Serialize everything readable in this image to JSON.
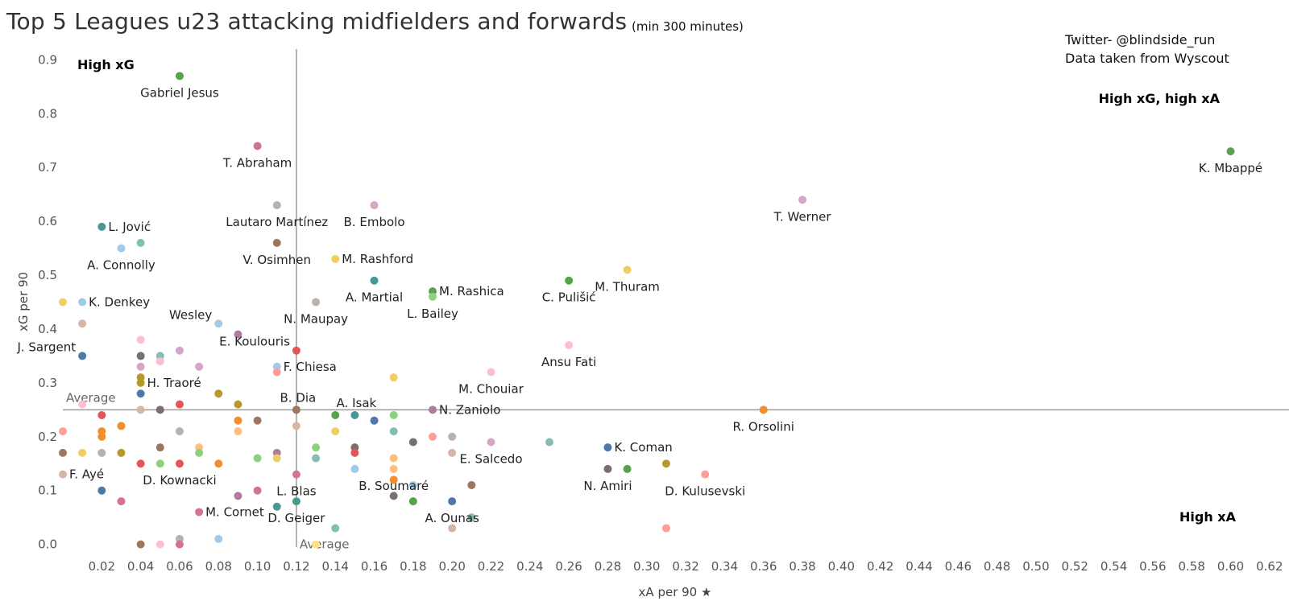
{
  "header": {
    "title": "Top 5 Leagues u23 attacking midfielders and forwards",
    "subtitle": "(min 300 minutes)",
    "credit_twitter": "Twitter- @blindside_run",
    "credit_source": "Data taken from Wyscout"
  },
  "chart_data": {
    "type": "scatter",
    "title": "Top 5 Leagues u23 attacking midfielders and forwards",
    "subtitle": "(min 300 minutes)",
    "xlabel": "xA per 90 ★",
    "ylabel": "xG per 90",
    "xlim": [
      0.0,
      0.63
    ],
    "ylim": [
      -0.02,
      0.92
    ],
    "x_ticks": [
      "0.02",
      "0.04",
      "0.06",
      "0.08",
      "0.10",
      "0.12",
      "0.14",
      "0.16",
      "0.18",
      "0.20",
      "0.22",
      "0.24",
      "0.26",
      "0.28",
      "0.30",
      "0.32",
      "0.34",
      "0.36",
      "0.38",
      "0.40",
      "0.42",
      "0.44",
      "0.46",
      "0.48",
      "0.50",
      "0.52",
      "0.54",
      "0.56",
      "0.58",
      "0.60",
      "0.62"
    ],
    "y_ticks": [
      "0.0",
      "0.1",
      "0.2",
      "0.3",
      "0.4",
      "0.5",
      "0.6",
      "0.7",
      "0.8",
      "0.9"
    ],
    "grid": false,
    "reference_lines": {
      "average_x": 0.12,
      "average_y": 0.25,
      "x_average_label": "Average",
      "y_average_label": "Average"
    },
    "quadrant_labels": {
      "top_left": "High xG",
      "top_right": "High xG, high xA",
      "bottom_right": "High xA"
    },
    "points": [
      {
        "x": 0.06,
        "y": 0.87,
        "color": "#59a14f",
        "label": "Gabriel Jesus"
      },
      {
        "x": 0.1,
        "y": 0.74,
        "color": "#d37295",
        "label": "T. Abraham"
      },
      {
        "x": 0.11,
        "y": 0.63,
        "color": "#bab0ac",
        "label": "Lautaro Martínez"
      },
      {
        "x": 0.16,
        "y": 0.63,
        "color": "#d4a6c8",
        "label": "B. Embolo"
      },
      {
        "x": 0.02,
        "y": 0.59,
        "color": "#499894",
        "label": "L. Jović"
      },
      {
        "x": 0.03,
        "y": 0.55,
        "color": "#a0cbe8",
        "label": "A. Connolly"
      },
      {
        "x": 0.04,
        "y": 0.56,
        "color": "#86bcb6",
        "label": ""
      },
      {
        "x": 0.11,
        "y": 0.56,
        "color": "#9d7660",
        "label": "V. Osimhen"
      },
      {
        "x": 0.14,
        "y": 0.53,
        "color": "#f1ce63",
        "label": "M. Rashford"
      },
      {
        "x": 0.16,
        "y": 0.49,
        "color": "#499894",
        "label": "A. Martial"
      },
      {
        "x": 0.19,
        "y": 0.47,
        "color": "#59a14f",
        "label": "M. Rashica"
      },
      {
        "x": 0.19,
        "y": 0.46,
        "color": "#8cd17d",
        "label": "L. Bailey"
      },
      {
        "x": 0.26,
        "y": 0.49,
        "color": "#59a14f",
        "label": "C. Pulišić"
      },
      {
        "x": 0.29,
        "y": 0.51,
        "color": "#f1ce63",
        "label": "M. Thuram"
      },
      {
        "x": 0.38,
        "y": 0.64,
        "color": "#d4a6c8",
        "label": "T. Werner"
      },
      {
        "x": 0.6,
        "y": 0.73,
        "color": "#59a14f",
        "label": "K. Mbappé"
      },
      {
        "x": 0.0,
        "y": 0.45,
        "color": "#f1ce63",
        "label": ""
      },
      {
        "x": 0.01,
        "y": 0.45,
        "color": "#a0cbe8",
        "label": "K. Denkey"
      },
      {
        "x": 0.13,
        "y": 0.45,
        "color": "#bab0ac",
        "label": "N. Maupay"
      },
      {
        "x": 0.08,
        "y": 0.41,
        "color": "#a0cbe8",
        "label": "Wesley"
      },
      {
        "x": 0.09,
        "y": 0.39,
        "color": "#b07aa1",
        "label": ""
      },
      {
        "x": 0.01,
        "y": 0.41,
        "color": "#d7b5a6",
        "label": ""
      },
      {
        "x": 0.04,
        "y": 0.38,
        "color": "#fabfd2",
        "label": ""
      },
      {
        "x": 0.01,
        "y": 0.35,
        "color": "#4e79a7",
        "label": "J. Sargent"
      },
      {
        "x": 0.04,
        "y": 0.35,
        "color": "#79706e",
        "label": ""
      },
      {
        "x": 0.05,
        "y": 0.35,
        "color": "#86bcb6",
        "label": ""
      },
      {
        "x": 0.06,
        "y": 0.36,
        "color": "#d4a6c8",
        "label": ""
      },
      {
        "x": 0.05,
        "y": 0.34,
        "color": "#fabfd2",
        "label": ""
      },
      {
        "x": 0.04,
        "y": 0.33,
        "color": "#d4a6c8",
        "label": ""
      },
      {
        "x": 0.07,
        "y": 0.33,
        "color": "#d4a6c8",
        "label": ""
      },
      {
        "x": 0.12,
        "y": 0.36,
        "color": "#e15759",
        "label": "E. Koulouris"
      },
      {
        "x": 0.11,
        "y": 0.33,
        "color": "#a0cbe8",
        "label": "F. Chiesa"
      },
      {
        "x": 0.11,
        "y": 0.32,
        "color": "#ff9d9a",
        "label": ""
      },
      {
        "x": 0.04,
        "y": 0.31,
        "color": "#b6992d",
        "label": ""
      },
      {
        "x": 0.04,
        "y": 0.3,
        "color": "#b6992d",
        "label": "H. Traoré"
      },
      {
        "x": 0.26,
        "y": 0.37,
        "color": "#fabfd2",
        "label": "Ansu Fati"
      },
      {
        "x": 0.22,
        "y": 0.32,
        "color": "#fabfd2",
        "label": "M. Chouiar"
      },
      {
        "x": 0.17,
        "y": 0.31,
        "color": "#f1ce63",
        "label": ""
      },
      {
        "x": 0.04,
        "y": 0.28,
        "color": "#4e79a7",
        "label": ""
      },
      {
        "x": 0.08,
        "y": 0.28,
        "color": "#b6992d",
        "label": ""
      },
      {
        "x": 0.09,
        "y": 0.26,
        "color": "#b6992d",
        "label": ""
      },
      {
        "x": 0.04,
        "y": 0.25,
        "color": "#d7b5a6",
        "label": ""
      },
      {
        "x": 0.05,
        "y": 0.25,
        "color": "#79706e",
        "label": ""
      },
      {
        "x": 0.06,
        "y": 0.26,
        "color": "#e15759",
        "label": ""
      },
      {
        "x": 0.01,
        "y": 0.26,
        "color": "#fabfd2",
        "label": ""
      },
      {
        "x": 0.12,
        "y": 0.25,
        "color": "#9d7660",
        "label": "B. Dia"
      },
      {
        "x": 0.14,
        "y": 0.24,
        "color": "#59a14f",
        "label": ""
      },
      {
        "x": 0.15,
        "y": 0.24,
        "color": "#499894",
        "label": "A. Isak"
      },
      {
        "x": 0.16,
        "y": 0.23,
        "color": "#4e79a7",
        "label": ""
      },
      {
        "x": 0.17,
        "y": 0.24,
        "color": "#8cd17d",
        "label": ""
      },
      {
        "x": 0.19,
        "y": 0.25,
        "color": "#b07aa1",
        "label": "N. Zaniolo"
      },
      {
        "x": 0.36,
        "y": 0.25,
        "color": "#f28e2b",
        "label": "R. Orsolini"
      },
      {
        "x": 0.02,
        "y": 0.24,
        "color": "#e15759",
        "label": ""
      },
      {
        "x": 0.09,
        "y": 0.23,
        "color": "#f28e2b",
        "label": ""
      },
      {
        "x": 0.1,
        "y": 0.23,
        "color": "#9d7660",
        "label": ""
      },
      {
        "x": 0.12,
        "y": 0.22,
        "color": "#d7b5a6",
        "label": ""
      },
      {
        "x": 0.0,
        "y": 0.21,
        "color": "#ff9d9a",
        "label": ""
      },
      {
        "x": 0.02,
        "y": 0.21,
        "color": "#f28e2b",
        "label": ""
      },
      {
        "x": 0.02,
        "y": 0.2,
        "color": "#f28e2b",
        "label": ""
      },
      {
        "x": 0.03,
        "y": 0.22,
        "color": "#f28e2b",
        "label": ""
      },
      {
        "x": 0.06,
        "y": 0.21,
        "color": "#bab0ac",
        "label": ""
      },
      {
        "x": 0.09,
        "y": 0.21,
        "color": "#ffbe7d",
        "label": ""
      },
      {
        "x": 0.14,
        "y": 0.21,
        "color": "#f1ce63",
        "label": ""
      },
      {
        "x": 0.17,
        "y": 0.21,
        "color": "#86bcb6",
        "label": ""
      },
      {
        "x": 0.19,
        "y": 0.2,
        "color": "#ff9d9a",
        "label": ""
      },
      {
        "x": 0.2,
        "y": 0.2,
        "color": "#bab0ac",
        "label": ""
      },
      {
        "x": 0.18,
        "y": 0.19,
        "color": "#79706e",
        "label": ""
      },
      {
        "x": 0.22,
        "y": 0.19,
        "color": "#d4a6c8",
        "label": "E. Salcedo"
      },
      {
        "x": 0.25,
        "y": 0.19,
        "color": "#86bcb6",
        "label": ""
      },
      {
        "x": 0.28,
        "y": 0.18,
        "color": "#4e79a7",
        "label": "K. Coman"
      },
      {
        "x": 0.0,
        "y": 0.17,
        "color": "#9d7660",
        "label": ""
      },
      {
        "x": 0.01,
        "y": 0.17,
        "color": "#f1ce63",
        "label": ""
      },
      {
        "x": 0.02,
        "y": 0.17,
        "color": "#bab0ac",
        "label": ""
      },
      {
        "x": 0.03,
        "y": 0.17,
        "color": "#b6992d",
        "label": ""
      },
      {
        "x": 0.05,
        "y": 0.18,
        "color": "#9d7660",
        "label": ""
      },
      {
        "x": 0.07,
        "y": 0.18,
        "color": "#ffbe7d",
        "label": ""
      },
      {
        "x": 0.07,
        "y": 0.17,
        "color": "#8cd17d",
        "label": ""
      },
      {
        "x": 0.1,
        "y": 0.16,
        "color": "#8cd17d",
        "label": ""
      },
      {
        "x": 0.11,
        "y": 0.17,
        "color": "#b07aa1",
        "label": ""
      },
      {
        "x": 0.11,
        "y": 0.16,
        "color": "#f1ce63",
        "label": ""
      },
      {
        "x": 0.13,
        "y": 0.18,
        "color": "#8cd17d",
        "label": ""
      },
      {
        "x": 0.13,
        "y": 0.16,
        "color": "#86bcb6",
        "label": ""
      },
      {
        "x": 0.15,
        "y": 0.18,
        "color": "#79706e",
        "label": ""
      },
      {
        "x": 0.15,
        "y": 0.17,
        "color": "#e15759",
        "label": ""
      },
      {
        "x": 0.17,
        "y": 0.16,
        "color": "#ffbe7d",
        "label": ""
      },
      {
        "x": 0.2,
        "y": 0.17,
        "color": "#d7b5a6",
        "label": ""
      },
      {
        "x": 0.31,
        "y": 0.15,
        "color": "#b6992d",
        "label": ""
      },
      {
        "x": 0.04,
        "y": 0.15,
        "color": "#e15759",
        "label": ""
      },
      {
        "x": 0.05,
        "y": 0.15,
        "color": "#8cd17d",
        "label": ""
      },
      {
        "x": 0.06,
        "y": 0.15,
        "color": "#e15759",
        "label": "D. Kownacki"
      },
      {
        "x": 0.08,
        "y": 0.15,
        "color": "#f28e2b",
        "label": ""
      },
      {
        "x": 0.15,
        "y": 0.14,
        "color": "#a0cbe8",
        "label": ""
      },
      {
        "x": 0.17,
        "y": 0.14,
        "color": "#ffbe7d",
        "label": "B. Soumaré"
      },
      {
        "x": 0.28,
        "y": 0.14,
        "color": "#79706e",
        "label": "N. Amiri"
      },
      {
        "x": 0.29,
        "y": 0.14,
        "color": "#59a14f",
        "label": ""
      },
      {
        "x": 0.0,
        "y": 0.13,
        "color": "#d7b5a6",
        "label": "F. Ayé"
      },
      {
        "x": 0.12,
        "y": 0.13,
        "color": "#d37295",
        "label": "L. Blas"
      },
      {
        "x": 0.17,
        "y": 0.12,
        "color": "#f28e2b",
        "label": ""
      },
      {
        "x": 0.18,
        "y": 0.11,
        "color": "#a0cbe8",
        "label": ""
      },
      {
        "x": 0.21,
        "y": 0.11,
        "color": "#9d7660",
        "label": ""
      },
      {
        "x": 0.33,
        "y": 0.13,
        "color": "#ff9d9a",
        "label": "D. Kulusevski"
      },
      {
        "x": 0.02,
        "y": 0.1,
        "color": "#4e79a7",
        "label": ""
      },
      {
        "x": 0.1,
        "y": 0.1,
        "color": "#d37295",
        "label": ""
      },
      {
        "x": 0.09,
        "y": 0.09,
        "color": "#b07aa1",
        "label": ""
      },
      {
        "x": 0.03,
        "y": 0.08,
        "color": "#d37295",
        "label": ""
      },
      {
        "x": 0.17,
        "y": 0.09,
        "color": "#79706e",
        "label": ""
      },
      {
        "x": 0.18,
        "y": 0.08,
        "color": "#59a14f",
        "label": ""
      },
      {
        "x": 0.2,
        "y": 0.08,
        "color": "#4e79a7",
        "label": "A. Ounas"
      },
      {
        "x": 0.12,
        "y": 0.08,
        "color": "#499894",
        "label": "D. Geiger"
      },
      {
        "x": 0.11,
        "y": 0.07,
        "color": "#499894",
        "label": ""
      },
      {
        "x": 0.07,
        "y": 0.06,
        "color": "#d37295",
        "label": "M. Cornet"
      },
      {
        "x": 0.21,
        "y": 0.05,
        "color": "#86bcb6",
        "label": ""
      },
      {
        "x": 0.14,
        "y": 0.03,
        "color": "#86bcb6",
        "label": ""
      },
      {
        "x": 0.2,
        "y": 0.03,
        "color": "#d7b5a6",
        "label": ""
      },
      {
        "x": 0.31,
        "y": 0.03,
        "color": "#ff9d9a",
        "label": ""
      },
      {
        "x": 0.06,
        "y": 0.01,
        "color": "#bab0ac",
        "label": ""
      },
      {
        "x": 0.08,
        "y": 0.01,
        "color": "#a0cbe8",
        "label": ""
      },
      {
        "x": 0.04,
        "y": 0.0,
        "color": "#9d7660",
        "label": ""
      },
      {
        "x": 0.05,
        "y": 0.0,
        "color": "#fabfd2",
        "label": ""
      },
      {
        "x": 0.06,
        "y": 0.0,
        "color": "#d37295",
        "label": ""
      },
      {
        "x": 0.13,
        "y": 0.0,
        "color": "#ffe08a",
        "label": ""
      }
    ]
  }
}
